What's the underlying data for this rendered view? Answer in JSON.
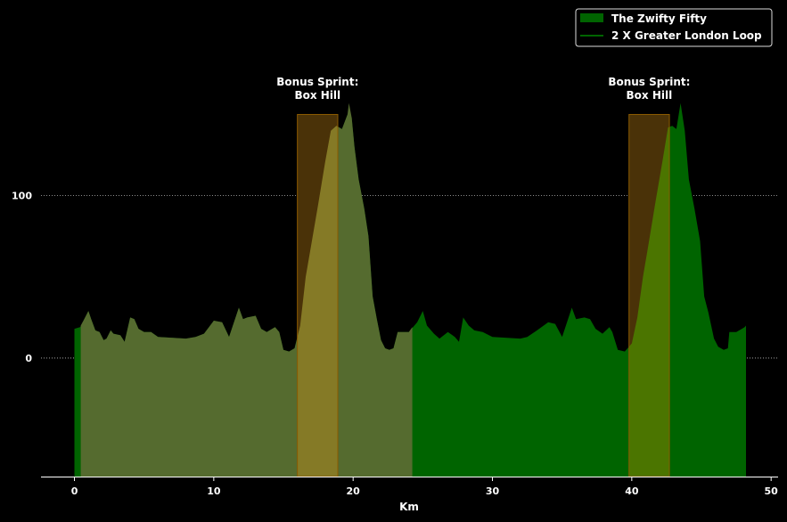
{
  "chart_data": {
    "type": "area",
    "title": "",
    "xlabel": "Km",
    "ylabel": "",
    "xlim": [
      -2.4,
      50.5
    ],
    "ylim": [
      -73,
      215
    ],
    "xticks": [
      0,
      10,
      20,
      30,
      40,
      50
    ],
    "yticks": [
      0,
      100
    ],
    "grid": "horizontal dotted at y ticks",
    "legend_position": "top-right",
    "colors": {
      "background": "#000000",
      "route": "#006400",
      "lap": "#556b2f",
      "sprint_band": "#4a3208",
      "sprint_edge": "#8b5a00",
      "overlap_green": "#4b7500",
      "overlap_lap": "#857a26",
      "grid": "#bbbbbb",
      "text": "#ffffff"
    },
    "series": [
      {
        "name": "The Zwifty Fifty",
        "points": [
          [
            0,
            18
          ],
          [
            0.4,
            19
          ],
          [
            0.5,
            20
          ],
          [
            0.7,
            24
          ],
          [
            1.0,
            29
          ],
          [
            1.2,
            24
          ],
          [
            1.5,
            17
          ],
          [
            1.8,
            16
          ],
          [
            2.1,
            11
          ],
          [
            2.3,
            12
          ],
          [
            2.6,
            17
          ],
          [
            2.8,
            15
          ],
          [
            3.3,
            14
          ],
          [
            3.6,
            10
          ],
          [
            4.0,
            25
          ],
          [
            4.3,
            24
          ],
          [
            4.6,
            18
          ],
          [
            5.0,
            16
          ],
          [
            5.5,
            16
          ],
          [
            6.0,
            13
          ],
          [
            8.0,
            12
          ],
          [
            8.7,
            13
          ],
          [
            9.3,
            15
          ],
          [
            10.0,
            23
          ],
          [
            10.6,
            22
          ],
          [
            11.1,
            13
          ],
          [
            11.8,
            31
          ],
          [
            12.1,
            24
          ],
          [
            12.4,
            25
          ],
          [
            13.0,
            26
          ],
          [
            13.4,
            18
          ],
          [
            13.8,
            16
          ],
          [
            14.4,
            19
          ],
          [
            14.7,
            16
          ],
          [
            15.0,
            5
          ],
          [
            15.4,
            4
          ],
          [
            15.8,
            6
          ],
          [
            16.2,
            20
          ],
          [
            16.6,
            50
          ],
          [
            17.0,
            70
          ],
          [
            17.5,
            95
          ],
          [
            18.0,
            121
          ],
          [
            18.4,
            140
          ],
          [
            18.8,
            143
          ],
          [
            19.2,
            141
          ],
          [
            19.6,
            150
          ],
          [
            19.9,
            148
          ],
          [
            20.1,
            130
          ],
          [
            20.4,
            110
          ],
          [
            20.8,
            92
          ],
          [
            21.1,
            75
          ],
          [
            21.4,
            38
          ],
          [
            21.7,
            24
          ],
          [
            22.0,
            11
          ],
          [
            22.3,
            6
          ],
          [
            22.6,
            5
          ],
          [
            22.9,
            6
          ],
          [
            23.2,
            16
          ],
          [
            23.6,
            16
          ],
          [
            24.0,
            16
          ],
          [
            24.3,
            19
          ],
          [
            24.6,
            22
          ],
          [
            25.0,
            29
          ],
          [
            25.3,
            20
          ],
          [
            25.8,
            15
          ],
          [
            26.2,
            12
          ],
          [
            26.8,
            16
          ],
          [
            27.3,
            13
          ],
          [
            27.6,
            10
          ],
          [
            27.9,
            25
          ],
          [
            28.3,
            20
          ],
          [
            28.7,
            17
          ],
          [
            29.3,
            16
          ],
          [
            30.0,
            13
          ],
          [
            32.0,
            12
          ],
          [
            32.5,
            13
          ],
          [
            33.2,
            17
          ],
          [
            34.0,
            22
          ],
          [
            34.5,
            21
          ],
          [
            35.0,
            13
          ],
          [
            35.7,
            31
          ],
          [
            36.0,
            24
          ],
          [
            36.6,
            25
          ],
          [
            37.0,
            24
          ],
          [
            37.4,
            18
          ],
          [
            37.9,
            15
          ],
          [
            38.4,
            19
          ],
          [
            38.6,
            16
          ],
          [
            39.0,
            5
          ],
          [
            39.5,
            4
          ],
          [
            40.0,
            9
          ],
          [
            40.4,
            25
          ],
          [
            40.8,
            50
          ],
          [
            41.2,
            70
          ],
          [
            41.7,
            96
          ],
          [
            42.2,
            121
          ],
          [
            42.6,
            142
          ],
          [
            42.9,
            143
          ],
          [
            43.2,
            141
          ],
          [
            43.5,
            157
          ],
          [
            43.8,
            140
          ],
          [
            44.1,
            110
          ],
          [
            44.5,
            92
          ],
          [
            44.9,
            72
          ],
          [
            45.2,
            38
          ],
          [
            45.5,
            28
          ],
          [
            45.9,
            12
          ],
          [
            46.2,
            7
          ],
          [
            46.6,
            5
          ],
          [
            46.9,
            6
          ],
          [
            47.0,
            16
          ],
          [
            47.5,
            16
          ],
          [
            47.9,
            18
          ],
          [
            48.1,
            19
          ],
          [
            48.2,
            20
          ]
        ]
      },
      {
        "name": "2 X Greater London Loop",
        "x_start": 0.45,
        "x_end": 24.25,
        "points": [
          [
            0.45,
            20
          ],
          [
            0.7,
            24
          ],
          [
            1.0,
            29
          ],
          [
            1.2,
            24
          ],
          [
            1.5,
            17
          ],
          [
            1.8,
            16
          ],
          [
            2.1,
            11
          ],
          [
            2.3,
            12
          ],
          [
            2.6,
            17
          ],
          [
            2.8,
            15
          ],
          [
            3.3,
            14
          ],
          [
            3.6,
            10
          ],
          [
            4.0,
            25
          ],
          [
            4.3,
            24
          ],
          [
            4.6,
            18
          ],
          [
            5.0,
            16
          ],
          [
            5.5,
            16
          ],
          [
            6.0,
            13
          ],
          [
            8.0,
            12
          ],
          [
            8.7,
            13
          ],
          [
            9.3,
            15
          ],
          [
            10.0,
            23
          ],
          [
            10.6,
            22
          ],
          [
            11.1,
            13
          ],
          [
            11.8,
            31
          ],
          [
            12.1,
            24
          ],
          [
            12.4,
            25
          ],
          [
            13.0,
            26
          ],
          [
            13.4,
            18
          ],
          [
            13.8,
            16
          ],
          [
            14.4,
            19
          ],
          [
            14.7,
            16
          ],
          [
            15.0,
            5
          ],
          [
            15.4,
            4
          ],
          [
            15.8,
            6
          ],
          [
            16.2,
            20
          ],
          [
            16.6,
            50
          ],
          [
            17.0,
            70
          ],
          [
            17.5,
            95
          ],
          [
            18.0,
            121
          ],
          [
            18.4,
            140
          ],
          [
            18.8,
            143
          ],
          [
            19.2,
            141
          ],
          [
            19.6,
            150
          ],
          [
            19.7,
            157
          ],
          [
            19.9,
            148
          ],
          [
            20.1,
            130
          ],
          [
            20.4,
            110
          ],
          [
            20.8,
            92
          ],
          [
            21.1,
            75
          ],
          [
            21.4,
            38
          ],
          [
            21.7,
            24
          ],
          [
            22.0,
            11
          ],
          [
            22.3,
            6
          ],
          [
            22.6,
            5
          ],
          [
            22.9,
            6
          ],
          [
            23.2,
            16
          ],
          [
            23.6,
            16
          ],
          [
            24.0,
            16
          ],
          [
            24.25,
            19
          ]
        ]
      }
    ],
    "annotations": [
      {
        "label_line1": "Bonus Sprint:",
        "label_line2": "Box Hill",
        "x_start": 16.0,
        "x_end": 18.9,
        "y_top": 150
      },
      {
        "label_line1": "Bonus Sprint:",
        "label_line2": "Box Hill",
        "x_start": 39.8,
        "x_end": 42.7,
        "y_top": 150
      }
    ]
  }
}
